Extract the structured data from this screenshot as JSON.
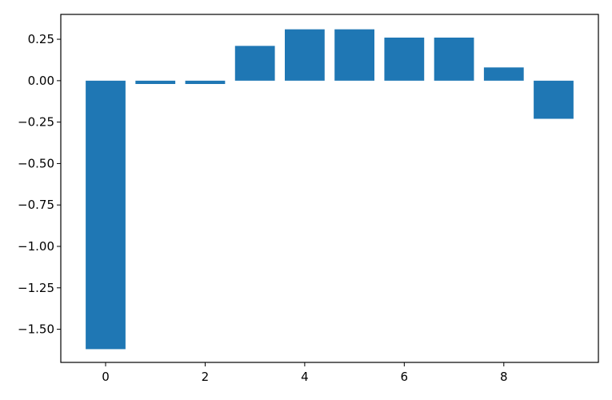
{
  "chart_data": {
    "type": "bar",
    "x": [
      0,
      1,
      2,
      3,
      4,
      5,
      6,
      7,
      8,
      9
    ],
    "values": [
      -1.62,
      -0.02,
      -0.02,
      0.21,
      0.31,
      0.31,
      0.26,
      0.26,
      0.08,
      -0.23
    ],
    "xlim": [
      -0.9,
      9.9
    ],
    "ylim": [
      -1.7,
      0.4
    ],
    "xticks": [
      0,
      2,
      4,
      6,
      8
    ],
    "xtick_labels": [
      "0",
      "2",
      "4",
      "6",
      "8"
    ],
    "yticks": [
      0.25,
      0.0,
      -0.25,
      -0.5,
      -0.75,
      -1.0,
      -1.25,
      -1.5
    ],
    "ytick_labels": [
      "0.25",
      "0.00",
      "−0.25",
      "−0.50",
      "−0.75",
      "−1.00",
      "−1.25",
      "−1.50"
    ],
    "bar_color": "#1f77b4",
    "grid": false,
    "legend": "none"
  }
}
